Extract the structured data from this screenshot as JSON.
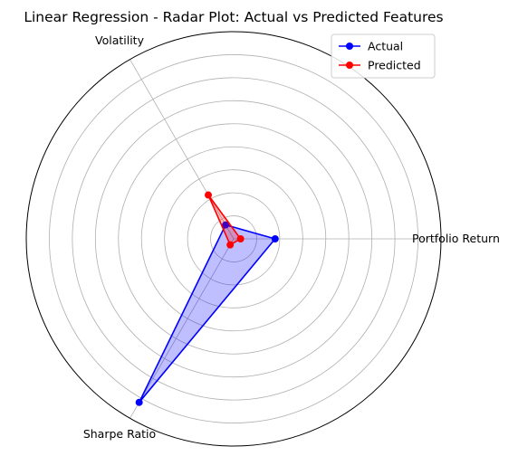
{
  "chart_data": {
    "type": "radar",
    "title": "Linear Regression - Radar Plot: Actual vs Predicted Features",
    "axes": [
      "Portfolio Return",
      "Volatility",
      "Sharpe Ratio"
    ],
    "rlim": [
      0,
      0.9
    ],
    "grid": true,
    "legend_position": "top-right",
    "series": [
      {
        "name": "Actual",
        "color": "#0000ff",
        "fill": "#0000ff",
        "values": [
          0.18,
          0.07,
          0.82
        ]
      },
      {
        "name": "Predicted",
        "color": "#ff0000",
        "fill": "#ff0000",
        "values": [
          0.03,
          0.22,
          0.03
        ]
      }
    ]
  }
}
